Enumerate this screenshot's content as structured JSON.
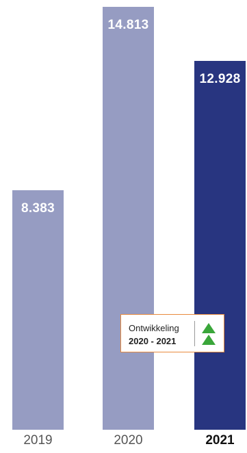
{
  "chart_data": {
    "type": "bar",
    "categories": [
      "2019",
      "2020",
      "2021"
    ],
    "values": [
      8383,
      14813,
      12928
    ],
    "value_labels": [
      "8.383",
      "14.813",
      "12.928"
    ],
    "highlight_category": "2021",
    "colors": {
      "bar": "#969cc2",
      "bar_highlight": "#283580",
      "tick_label": "#555555",
      "tick_label_highlight": "#111111",
      "annotation_border": "#e88a3c",
      "arrow": "#3aa63a"
    },
    "ylim": [
      0,
      14813
    ],
    "grid": false,
    "legend": "none",
    "annotation": {
      "title": "Ontwikkeling",
      "period": "2020 - 2021",
      "icon": "double-up-arrow-icon"
    }
  }
}
